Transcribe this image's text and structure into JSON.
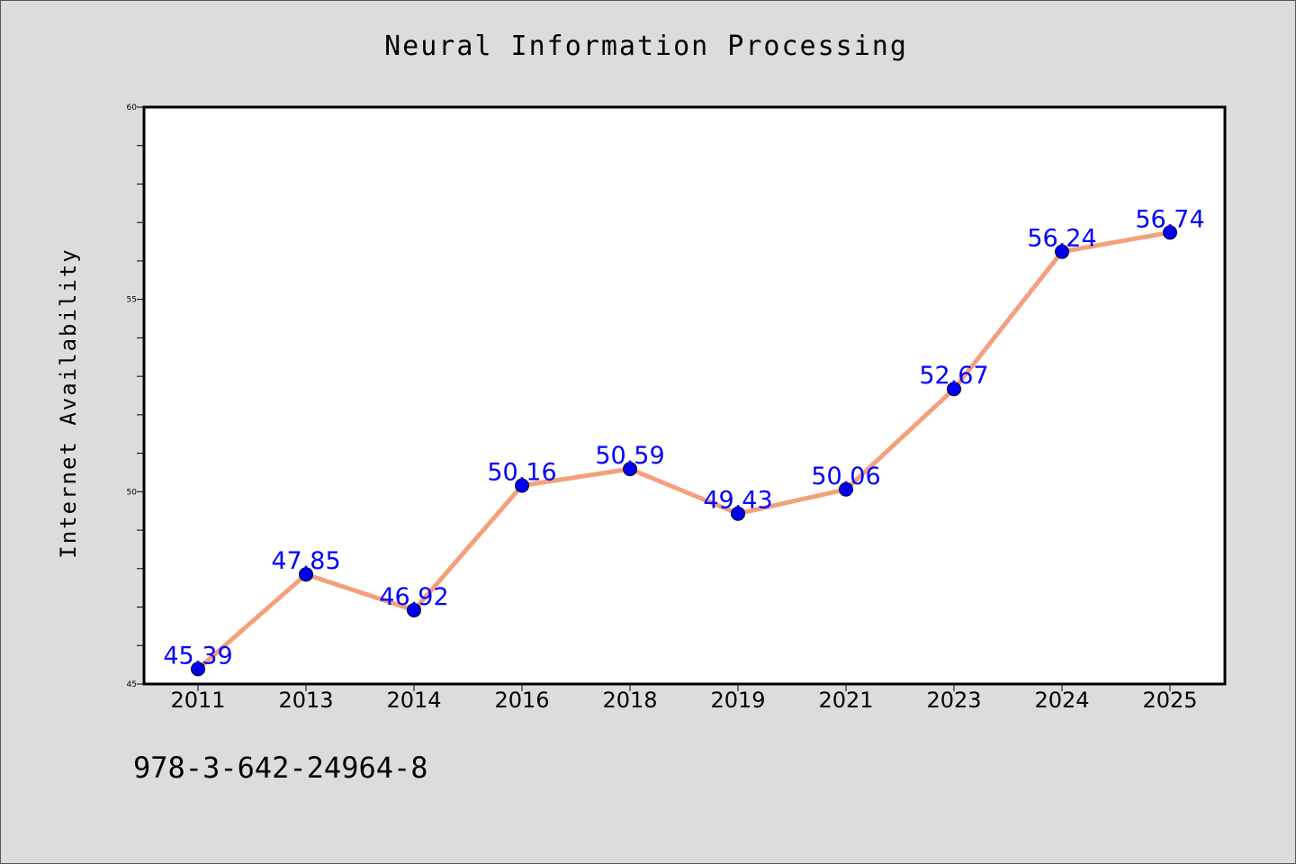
{
  "chart_data": {
    "type": "line",
    "title": "Neural Information Processing",
    "xlabel": "",
    "ylabel": "Internet Availability",
    "categories": [
      "2011",
      "2013",
      "2014",
      "2016",
      "2018",
      "2019",
      "2021",
      "2023",
      "2024",
      "2025"
    ],
    "series": [
      {
        "values": [
          45.39,
          47.85,
          46.92,
          50.16,
          50.59,
          49.43,
          50.06,
          52.67,
          56.24,
          56.74
        ],
        "data_labels": [
          "45.39",
          "47.85",
          "46.92",
          "50.16",
          "50.59",
          "49.43",
          "50.06",
          "52.67",
          "56.24",
          "56.74"
        ],
        "line_color": "#f4a07c",
        "marker_color": "#0000ee",
        "label_color": "#0000ff"
      }
    ],
    "ylim": [
      45,
      60
    ],
    "y_major_ticks": [
      "45",
      "50",
      "55",
      "60"
    ],
    "grid": false,
    "legend": "none"
  },
  "footer": {
    "isbn": "978-3-642-24964-8"
  },
  "colors": {
    "page_background": "#dcdcdc",
    "plot_background": "#ffffff",
    "axis": "#000000"
  }
}
